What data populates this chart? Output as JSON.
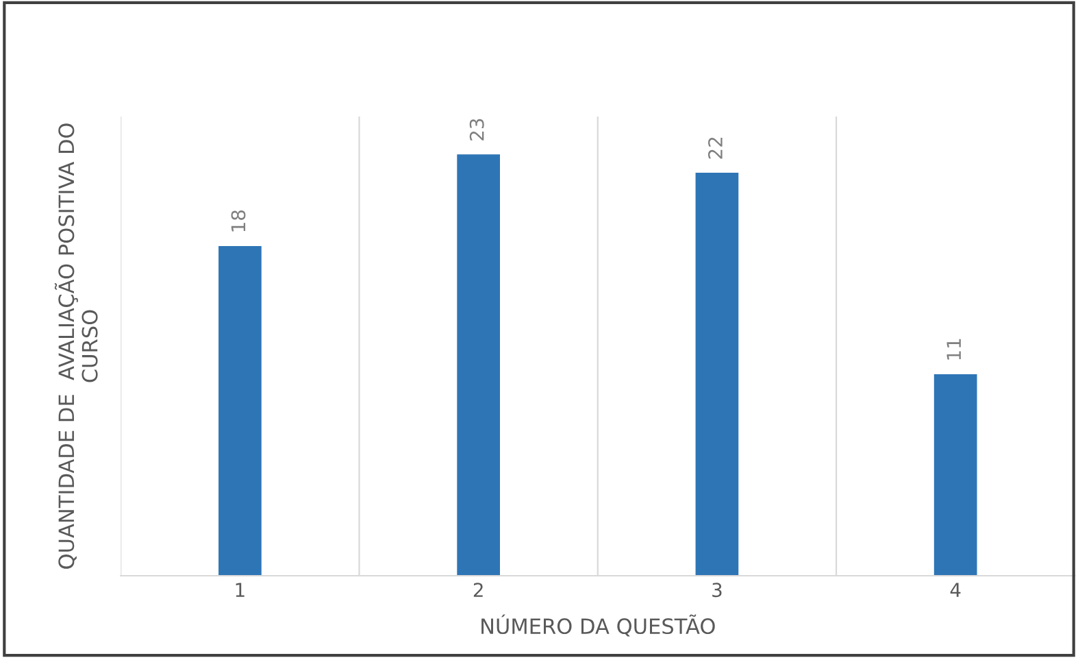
{
  "chart_data": {
    "type": "bar",
    "xlabel": "NÚMERO DA QUESTÃO",
    "ylabel": "QUANTIDADE DE  AVALIAÇÃO POSITIVA DO\nCURSO",
    "categories": [
      "1",
      "2",
      "3",
      "4"
    ],
    "values": [
      18,
      23,
      22,
      11
    ],
    "color": "#2e75b6",
    "data_labels": true,
    "grid": "x",
    "tick_labels": "x"
  }
}
